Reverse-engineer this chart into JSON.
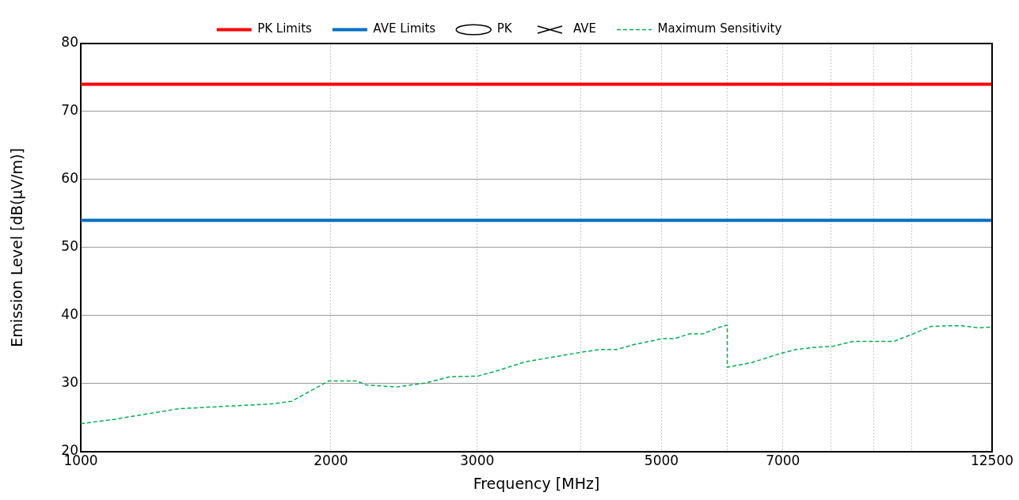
{
  "chart_data": {
    "type": "line",
    "xlabel": "Frequency [MHz]",
    "ylabel": "Emission Level [dB(μV/m)]",
    "log": "x",
    "grid": true,
    "legend": "top",
    "xlim": [
      1000,
      12500
    ],
    "xticks": [
      1000,
      2000,
      3000,
      {
        "value": 4000,
        "label": null
      },
      5000,
      {
        "value": 6000,
        "label": null
      },
      7000,
      {
        "value": 8000,
        "label": null
      },
      {
        "value": 9000,
        "label": null
      },
      {
        "value": 10000,
        "label": null
      },
      12500
    ],
    "ylim": [
      20,
      80
    ],
    "yticks": [
      20,
      30,
      40,
      50,
      60,
      70,
      80
    ],
    "series": [
      {
        "name": "PK Limits",
        "color": "#ff0000",
        "marker": "none",
        "line_style": "solid",
        "x": [
          1000,
          12500
        ],
        "values": [
          74,
          74
        ]
      },
      {
        "name": "AVE Limits",
        "color": "#0070c0",
        "marker": "none",
        "line_style": "solid",
        "x": [
          1000,
          12500
        ],
        "values": [
          54,
          54
        ]
      },
      {
        "name": "PK",
        "type": "scatter",
        "color": "#000000",
        "marker": "circle"
      },
      {
        "name": "AVE",
        "type": "scatter",
        "color": "#000000",
        "marker": "cross"
      },
      {
        "name": "Maximum Sensitivity",
        "color": "#00b050",
        "marker": "none",
        "line_style": "dashed",
        "x": [
          1000,
          1092,
          1310,
          1694,
          1794,
          1989,
          2147,
          2204,
          2397,
          2606,
          2783,
          3005,
          3175,
          3429,
          4000,
          4216,
          4414,
          4622,
          5014,
          5180,
          5402,
          5609,
          5874,
          6000,
          6000,
          6427,
          6985,
          7251,
          7608,
          8056,
          8236,
          8511,
          9011,
          9520,
          9991,
          10556,
          11080,
          11499,
          12041,
          12460,
          12500
        ],
        "values": [
          24.1,
          24.7,
          26.3,
          27.0,
          27.4,
          30.4,
          30.4,
          29.8,
          29.5,
          30.1,
          31.0,
          31.1,
          31.9,
          33.2,
          34.6,
          35.0,
          35.0,
          35.7,
          36.6,
          36.6,
          37.3,
          37.3,
          38.3,
          38.6,
          32.4,
          33.1,
          34.5,
          35.0,
          35.3,
          35.5,
          35.8,
          36.2,
          36.2,
          36.2,
          37.2,
          38.4,
          38.5,
          38.5,
          38.2,
          38.3,
          38.6
        ]
      }
    ]
  }
}
